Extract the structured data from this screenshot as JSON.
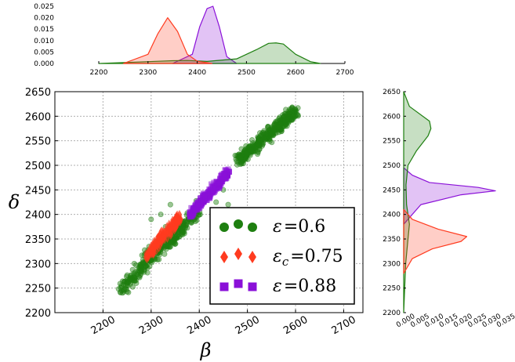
{
  "chart_data": [
    {
      "type": "scatter",
      "xlabel": "β",
      "ylabel": "δ",
      "xlim": [
        2100,
        2740
      ],
      "ylim": [
        2200,
        2650
      ],
      "xticks": [
        "2200",
        "2300",
        "2400",
        "2500",
        "2600",
        "2700"
      ],
      "yticks": [
        "2200",
        "2250",
        "2300",
        "2350",
        "2400",
        "2450",
        "2500",
        "2550",
        "2600",
        "2650"
      ],
      "grid": true,
      "legend": {
        "placement": "bottom-right",
        "entries": [
          {
            "tex": "ε",
            "sub": "",
            "value": "=0.6"
          },
          {
            "tex": "ε",
            "sub": "c",
            "value": "=0.75"
          },
          {
            "tex": "ε",
            "sub": "",
            "value": "=0.88"
          }
        ]
      },
      "series": [
        {
          "marker": "circle",
          "color": "#1e7f10",
          "clusters": [
            {
              "x": [
                2240,
                2400
              ],
              "y": [
                2250,
                2410
              ],
              "spread": 12,
              "count": 330
            },
            {
              "x": [
                2280,
                2350
              ],
              "y": [
                2320,
                2350
              ],
              "spread": 10,
              "count": 60
            },
            {
              "x": [
                2480,
                2600
              ],
              "y": [
                2510,
                2610
              ],
              "spread": 12,
              "count": 400
            }
          ],
          "outliers": [
            [
              2320,
              2400
            ],
            [
              2435,
              2425
            ],
            [
              2495,
              2380
            ],
            [
              2460,
              2420
            ],
            [
              2300,
              2390
            ],
            [
              2265,
              2300
            ],
            [
              2340,
              2420
            ],
            [
              2410,
              2435
            ],
            [
              2450,
              2450
            ],
            [
              2330,
              2375
            ]
          ]
        },
        {
          "marker": "diamond",
          "color": "#ff3b1f",
          "clusters": [
            {
              "x": [
                2290,
                2360
              ],
              "y": [
                2315,
                2395
              ],
              "spread": 9,
              "count": 220
            }
          ],
          "outliers": []
        },
        {
          "marker": "square",
          "color": "#8a10d8",
          "clusters": [
            {
              "x": [
                2380,
                2460
              ],
              "y": [
                2400,
                2485
              ],
              "spread": 8,
              "count": 260
            }
          ],
          "outliers": [
            [
              2460,
              2492
            ]
          ]
        }
      ]
    },
    {
      "type": "area",
      "xticks": [
        "2200",
        "2300",
        "2400",
        "2500",
        "2600",
        "2700"
      ],
      "yticks": [
        "0.000",
        "0.005",
        "0.010",
        "0.015",
        "0.020",
        "0.025"
      ],
      "xlim": [
        2200,
        2700
      ],
      "ylim": [
        0,
        0.025
      ],
      "series": [
        {
          "color": "#1e7f10",
          "x": [
            2200,
            2300,
            2350,
            2380,
            2420,
            2480,
            2520,
            2545,
            2560,
            2575,
            2600,
            2630,
            2650
          ],
          "y": [
            0,
            0.0008,
            0.0012,
            0.0013,
            0.0009,
            0.002,
            0.006,
            0.0088,
            0.009,
            0.0085,
            0.004,
            0.0008,
            0
          ]
        },
        {
          "color": "#ff3b1f",
          "x": [
            2250,
            2300,
            2320,
            2340,
            2360,
            2380,
            2400,
            2430
          ],
          "y": [
            0,
            0.004,
            0.013,
            0.02,
            0.014,
            0.004,
            0.001,
            0
          ]
        },
        {
          "color": "#8a10d8",
          "x": [
            2350,
            2390,
            2405,
            2420,
            2432,
            2445,
            2460,
            2480
          ],
          "y": [
            0,
            0.004,
            0.016,
            0.024,
            0.025,
            0.016,
            0.003,
            0
          ]
        }
      ]
    },
    {
      "type": "area",
      "orientation": "horizontal",
      "xticks": [
        "0.000",
        "0.005",
        "0.010",
        "0.015",
        "0.020",
        "0.025",
        "0.030",
        "0.035"
      ],
      "yticks": [
        "2200",
        "2250",
        "2300",
        "2350",
        "2400",
        "2450",
        "2500",
        "2550",
        "2600",
        "2650"
      ],
      "xlim": [
        0,
        0.035
      ],
      "ylim": [
        2200,
        2650
      ],
      "series": [
        {
          "color": "#1e7f10",
          "y": [
            2200,
            2300,
            2350,
            2380,
            2420,
            2460,
            2500,
            2530,
            2560,
            2575,
            2590,
            2620,
            2650
          ],
          "x": [
            0,
            0.0007,
            0.0015,
            0.002,
            0.001,
            0.0008,
            0.0015,
            0.0045,
            0.0085,
            0.0095,
            0.009,
            0.002,
            0
          ]
        },
        {
          "color": "#ff3b1f",
          "y": [
            2280,
            2310,
            2330,
            2345,
            2355,
            2370,
            2390,
            2410
          ],
          "x": [
            0,
            0.003,
            0.01,
            0.02,
            0.022,
            0.012,
            0.003,
            0
          ]
        },
        {
          "color": "#8a10d8",
          "y": [
            2380,
            2420,
            2440,
            2448,
            2455,
            2465,
            2480,
            2495
          ],
          "x": [
            0,
            0.006,
            0.02,
            0.032,
            0.026,
            0.009,
            0.003,
            0
          ]
        }
      ]
    }
  ]
}
